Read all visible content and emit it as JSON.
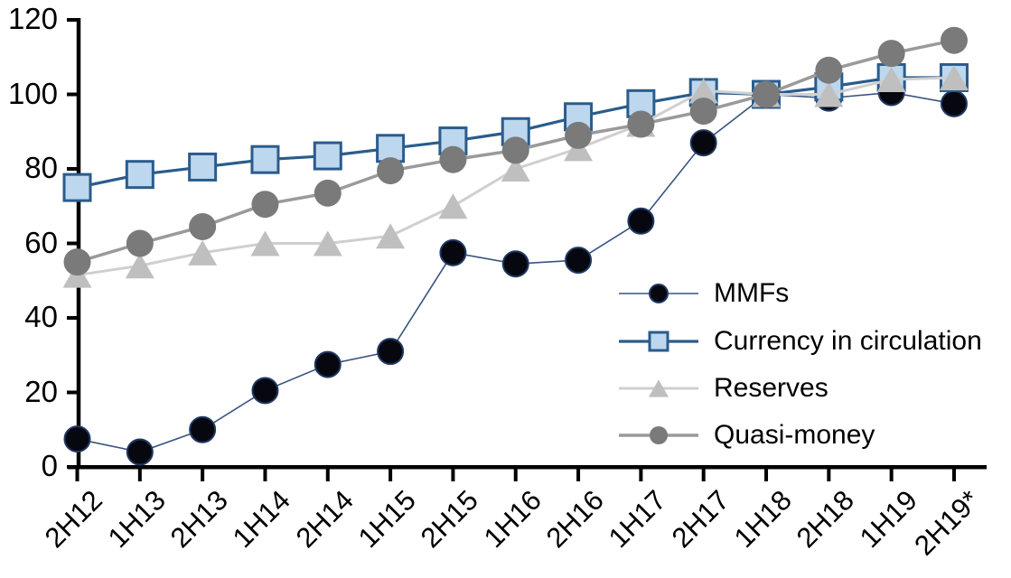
{
  "chart_data": {
    "type": "line",
    "title": "",
    "xlabel": "",
    "ylabel": "",
    "ylim": [
      0,
      120
    ],
    "yticks": [
      0,
      20,
      40,
      60,
      80,
      100,
      120
    ],
    "grid": false,
    "legend_position": "inside-center-right",
    "axis_color": "#000000",
    "categories": [
      "2H12",
      "1H13",
      "2H13",
      "1H14",
      "2H14",
      "1H15",
      "2H15",
      "1H16",
      "2H16",
      "1H17",
      "2H17",
      "1H18",
      "2H18",
      "1H19",
      "2H19*"
    ],
    "series": [
      {
        "name": "MMFs",
        "marker": "circle",
        "line_color": "#3A5380",
        "marker_fill": "#07070F",
        "marker_stroke": "#1F3864",
        "line_width": 1.6,
        "marker_size": 28,
        "values": [
          7.5,
          4,
          10,
          20.5,
          27.5,
          31,
          57.5,
          54.5,
          55.5,
          66,
          87,
          100,
          99,
          100.5,
          97.5
        ]
      },
      {
        "name": "Currency in circulation",
        "marker": "square",
        "line_color": "#2A5C8C",
        "marker_fill": "#BDD7EE",
        "marker_stroke": "#2A5C8C",
        "line_width": 3.2,
        "marker_size": 29,
        "values": [
          75,
          78.5,
          80.5,
          82.5,
          83.5,
          85.5,
          87.5,
          90,
          94,
          97.5,
          100.5,
          100,
          102,
          104.5,
          104.5
        ]
      },
      {
        "name": "Reserves",
        "marker": "triangle",
        "line_color": "#CFCFCF",
        "marker_fill": "#BFBFBF",
        "marker_stroke": "none",
        "line_width": 3,
        "marker_size": 32,
        "values": [
          51.5,
          54,
          57.5,
          60,
          60,
          62,
          70,
          80,
          85.5,
          92,
          101,
          100,
          100,
          104,
          104.5
        ]
      },
      {
        "name": "Quasi-money",
        "marker": "circle",
        "line_color": "#9A9A9A",
        "marker_fill": "#7A7A7A",
        "marker_stroke": "none",
        "line_width": 3.5,
        "marker_size": 30,
        "values": [
          55,
          60,
          64.5,
          70.5,
          73.5,
          79.5,
          82.5,
          85,
          89,
          92,
          95.5,
          100,
          106.5,
          111,
          114.5
        ]
      }
    ]
  }
}
